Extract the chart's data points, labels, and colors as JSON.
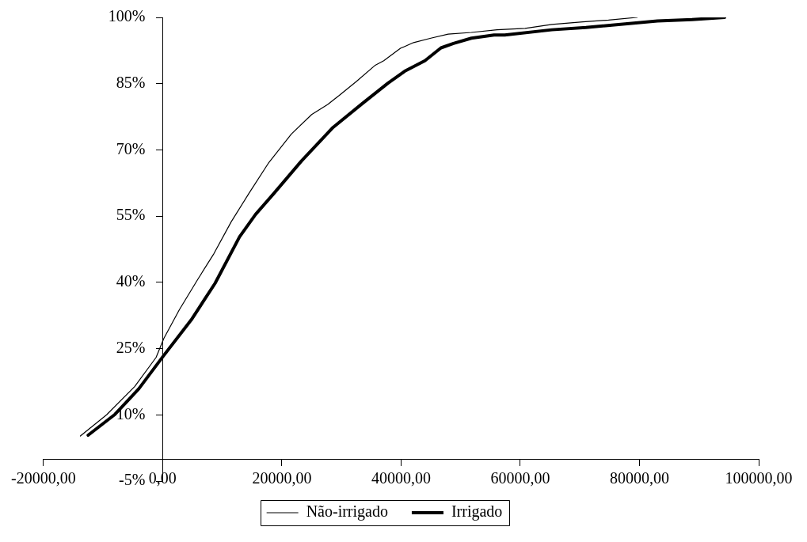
{
  "chart_data": {
    "type": "line",
    "xlim": [
      -20000,
      100000
    ],
    "ylim": [
      -5,
      100
    ],
    "xticks": [
      {
        "value": -20000,
        "label": "-20000,00"
      },
      {
        "value": 0,
        "label": "0,00"
      },
      {
        "value": 20000,
        "label": "20000,00"
      },
      {
        "value": 40000,
        "label": "40000,00"
      },
      {
        "value": 60000,
        "label": "60000,00"
      },
      {
        "value": 80000,
        "label": "80000,00"
      },
      {
        "value": 100000,
        "label": "100000,00"
      }
    ],
    "yticks": [
      {
        "value": -5,
        "label": "-5%"
      },
      {
        "value": 10,
        "label": "10%"
      },
      {
        "value": 25,
        "label": "25%"
      },
      {
        "value": 40,
        "label": "40%"
      },
      {
        "value": 55,
        "label": "55%"
      },
      {
        "value": 70,
        "label": "70%"
      },
      {
        "value": 85,
        "label": "85%"
      },
      {
        "value": 100,
        "label": "100%"
      }
    ],
    "grid": false,
    "legend": "bottom",
    "marker": "none",
    "line_style": "solid",
    "series": [
      {
        "name": "Não-irrigado",
        "color": "#000000",
        "x": [
          -13800,
          -9400,
          -4700,
          -1100,
          200,
          2800,
          5900,
          8600,
          11500,
          14500,
          17700,
          21600,
          25000,
          27700,
          29600,
          32500,
          35600,
          37100,
          39900,
          42100,
          45000,
          47900,
          51800,
          56100,
          60800,
          65300,
          70500,
          74800,
          79600
        ],
        "values": [
          5.2,
          10,
          16.4,
          23,
          27.3,
          33.8,
          40.7,
          46.5,
          53.7,
          60.2,
          66.9,
          73.6,
          78,
          80.3,
          82.3,
          85.5,
          89.1,
          90.2,
          93,
          94.3,
          95.3,
          96.2,
          96.6,
          97.2,
          97.5,
          98.4,
          99,
          99.4,
          100
        ]
      },
      {
        "name": "Irrigado",
        "color": "#000000",
        "x": [
          -12500,
          -8000,
          -4000,
          0,
          4800,
          8800,
          12900,
          15600,
          18700,
          23300,
          28600,
          33500,
          37800,
          40600,
          44000,
          46700,
          48800,
          51800,
          55600,
          57400,
          65300,
          71000,
          83000,
          88800,
          94300
        ],
        "values": [
          5.4,
          10.1,
          15.9,
          23.1,
          31.5,
          39.8,
          50.3,
          55.4,
          60.2,
          67.5,
          75.1,
          80.5,
          85.1,
          87.8,
          90.2,
          93.1,
          94.1,
          95.3,
          96,
          96,
          97.2,
          97.7,
          99.2,
          99.5,
          100
        ]
      }
    ]
  }
}
